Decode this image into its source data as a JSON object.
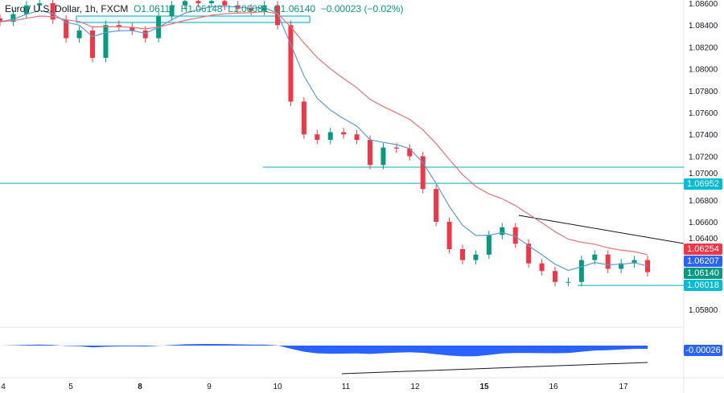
{
  "header": {
    "symbol": "Euro / U.S. Dollar, 1h, FXCM",
    "open": "O1.06117",
    "high": "H1.06148",
    "low": "L1.06081",
    "close": "C1.06140",
    "change": "−0.00023 (−0.02%)"
  },
  "price_tags": [
    {
      "label": "1.06952",
      "color": "#00bcd4"
    },
    {
      "label": "1.06254",
      "color": "#f23645"
    },
    {
      "label": "1.06207",
      "color": "#2962ff"
    },
    {
      "label": "1.06140",
      "color": "#089981"
    },
    {
      "label": "1.06018",
      "color": "#00bcd4"
    }
  ],
  "oscillator_tag": {
    "label": "-0.00026",
    "color": "#2962ff"
  },
  "colors": {
    "up": "#089981",
    "down": "#f23645",
    "fast_ma": "#5b9bd5",
    "slow_ma": "#e57373",
    "levels": "#00acc1",
    "oscillator": "#2962ff"
  },
  "chart_data": {
    "type": "candlestick",
    "ylim": [
      1.057,
      1.0862
    ],
    "y_ticks": [
      "1.08600",
      "1.08400",
      "1.08200",
      "1.08000",
      "1.07800",
      "1.07600",
      "1.07400",
      "1.07200",
      "1.07000",
      "1.06800",
      "1.06600",
      "1.06400",
      "1.05800"
    ],
    "x_ticks": [
      "4",
      "5",
      "8",
      "9",
      "10",
      "11",
      "12",
      "15",
      "16",
      "17"
    ],
    "closes": [
      1.0843,
      1.085,
      1.0858,
      1.086,
      1.0845,
      1.0828,
      1.0835,
      1.081,
      1.084,
      1.0838,
      1.0835,
      1.0828,
      1.0848,
      1.0858,
      1.0862,
      1.086,
      1.0862,
      1.0858,
      1.0855,
      1.0853,
      1.0858,
      1.084,
      1.077,
      1.074,
      1.0735,
      1.0742,
      1.074,
      1.0735,
      1.0712,
      1.0728,
      1.0727,
      1.072,
      1.069,
      1.066,
      1.0635,
      1.0625,
      1.063,
      1.0648,
      1.0655,
      1.064,
      1.0622,
      1.0615,
      1.0605,
      1.0605,
      1.0625,
      1.063,
      1.0617,
      1.0622,
      1.0625,
      1.0614
    ],
    "horizontal_levels": [
      1.06952,
      1.071,
      1.06018
    ],
    "oscillator_last": -0.00026
  }
}
